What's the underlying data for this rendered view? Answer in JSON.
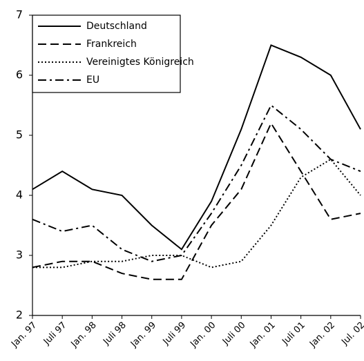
{
  "chart_data": {
    "type": "line",
    "categories": [
      "Jan. 97",
      "Juli 97",
      "Jan. 98",
      "Juli 98",
      "Jan. 99",
      "Juli 99",
      "Jan. 00",
      "Juli 00",
      "Jan. 01",
      "Juli 01",
      "Jan. 02",
      "Jul. 02"
    ],
    "series": [
      {
        "name": "Deutschland",
        "color": "#000000",
        "dash": "solid",
        "values": [
          4.1,
          4.4,
          4.1,
          4.0,
          3.5,
          3.1,
          3.9,
          5.1,
          6.5,
          6.3,
          6.0,
          5.1
        ]
      },
      {
        "name": "Frankreich",
        "color": "#000000",
        "dash": "dashed",
        "values": [
          2.8,
          2.9,
          2.9,
          2.7,
          2.6,
          2.6,
          3.5,
          4.1,
          5.2,
          4.4,
          3.6,
          3.7
        ]
      },
      {
        "name": "Vereinigtes Königreich",
        "color": "#000000",
        "dash": "dotted",
        "values": [
          2.8,
          2.8,
          2.9,
          2.9,
          3.0,
          3.0,
          2.8,
          2.9,
          3.5,
          4.3,
          4.6,
          4.0
        ]
      },
      {
        "name": "EU",
        "color": "#000000",
        "dash": "dashdot",
        "values": [
          3.6,
          3.4,
          3.5,
          3.1,
          2.9,
          3.0,
          3.7,
          4.5,
          5.5,
          5.1,
          4.6,
          4.4
        ]
      }
    ],
    "ylim": [
      2,
      7
    ],
    "yticks": [
      2,
      3,
      4,
      5,
      6,
      7
    ],
    "grid": false,
    "legend": "upper left"
  }
}
